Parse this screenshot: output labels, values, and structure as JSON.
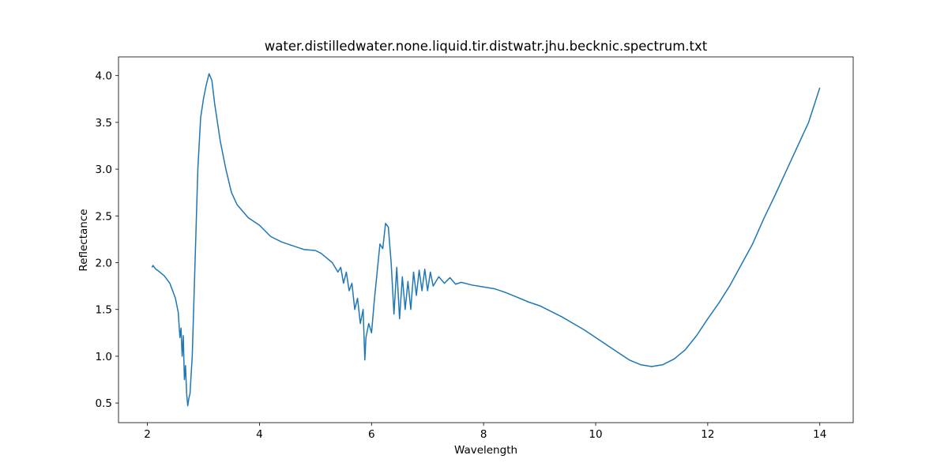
{
  "chart_data": {
    "type": "line",
    "title": "water.distilledwater.none.liquid.tir.distwatr.jhu.becknic.spectrum.txt",
    "xlabel": "Wavelength",
    "ylabel": "Reflectance",
    "color": "#1f77b4",
    "x": [
      2.08,
      2.1,
      2.15,
      2.2,
      2.3,
      2.4,
      2.5,
      2.55,
      2.58,
      2.6,
      2.62,
      2.64,
      2.66,
      2.68,
      2.7,
      2.72,
      2.74,
      2.76,
      2.8,
      2.85,
      2.9,
      2.95,
      3.0,
      3.05,
      3.1,
      3.15,
      3.2,
      3.3,
      3.4,
      3.5,
      3.6,
      3.8,
      4.0,
      4.2,
      4.4,
      4.6,
      4.8,
      5.0,
      5.1,
      5.2,
      5.3,
      5.4,
      5.45,
      5.5,
      5.55,
      5.6,
      5.65,
      5.7,
      5.75,
      5.8,
      5.85,
      5.88,
      5.9,
      5.95,
      6.0,
      6.05,
      6.1,
      6.15,
      6.2,
      6.25,
      6.3,
      6.35,
      6.4,
      6.45,
      6.5,
      6.55,
      6.6,
      6.65,
      6.7,
      6.75,
      6.8,
      6.85,
      6.9,
      6.95,
      7.0,
      7.05,
      7.1,
      7.2,
      7.3,
      7.4,
      7.5,
      7.6,
      7.8,
      8.0,
      8.2,
      8.4,
      8.6,
      8.8,
      9.0,
      9.2,
      9.4,
      9.6,
      9.8,
      10.0,
      10.2,
      10.4,
      10.6,
      10.8,
      11.0,
      11.2,
      11.4,
      11.6,
      11.8,
      12.0,
      12.2,
      12.4,
      12.6,
      12.8,
      13.0,
      13.2,
      13.4,
      13.6,
      13.8,
      14.0
    ],
    "values": [
      1.95,
      1.97,
      1.93,
      1.91,
      1.86,
      1.78,
      1.62,
      1.47,
      1.2,
      1.3,
      1.0,
      1.22,
      0.75,
      0.9,
      0.6,
      0.47,
      0.55,
      0.6,
      1.0,
      2.0,
      3.0,
      3.55,
      3.75,
      3.9,
      4.02,
      3.95,
      3.7,
      3.3,
      3.0,
      2.75,
      2.62,
      2.48,
      2.4,
      2.28,
      2.22,
      2.18,
      2.14,
      2.13,
      2.1,
      2.05,
      2.0,
      1.9,
      1.95,
      1.78,
      1.9,
      1.7,
      1.78,
      1.5,
      1.62,
      1.35,
      1.5,
      0.96,
      1.2,
      1.35,
      1.25,
      1.6,
      1.9,
      2.2,
      2.15,
      2.42,
      2.38,
      2.0,
      1.45,
      1.95,
      1.4,
      1.85,
      1.5,
      1.8,
      1.5,
      1.9,
      1.65,
      1.92,
      1.7,
      1.93,
      1.7,
      1.9,
      1.75,
      1.85,
      1.78,
      1.84,
      1.77,
      1.79,
      1.76,
      1.74,
      1.72,
      1.68,
      1.63,
      1.58,
      1.54,
      1.48,
      1.42,
      1.35,
      1.28,
      1.2,
      1.12,
      1.04,
      0.96,
      0.91,
      0.89,
      0.91,
      0.97,
      1.07,
      1.22,
      1.4,
      1.57,
      1.76,
      1.98,
      2.2,
      2.47,
      2.72,
      2.98,
      3.24,
      3.5,
      3.87
    ],
    "xlim": [
      1.484,
      14.596
    ],
    "ylim": [
      0.29,
      4.2
    ],
    "xticks": [
      2,
      4,
      6,
      8,
      10,
      12,
      14
    ],
    "yticks": [
      0.5,
      {
        "value": 1,
        "label": "1.0"
      },
      1.5,
      {
        "value": 2,
        "label": "2.0"
      },
      2.5,
      {
        "value": 3,
        "label": "3.0"
      },
      3.5,
      {
        "value": 4,
        "label": "4.0"
      }
    ]
  }
}
